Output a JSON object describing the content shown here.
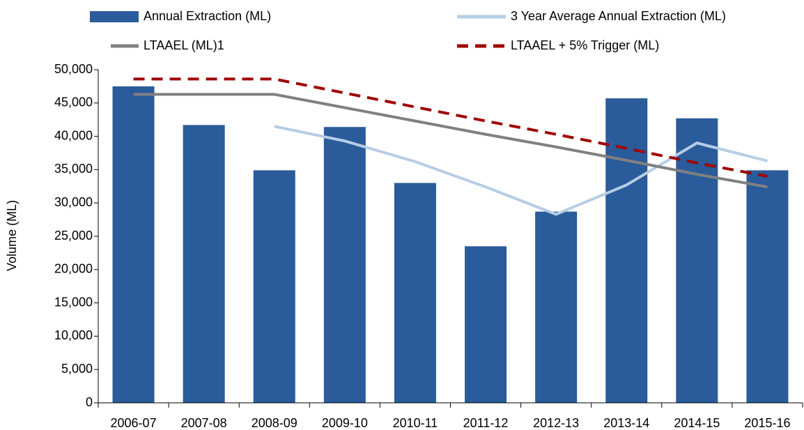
{
  "chart_data": {
    "type": "bar_line",
    "y_label": "Volume (ML)",
    "categories": [
      "2006-07",
      "2007-08",
      "2008-09",
      "2009-10",
      "2010-11",
      "2011-12",
      "2012-13",
      "2013-14",
      "2014-15",
      "2015-16"
    ],
    "series": [
      {
        "name": "Annual Extraction (ML)",
        "type": "bar",
        "color": "#2a5b9b",
        "values": [
          47500,
          41700,
          34900,
          41400,
          33000,
          23500,
          28700,
          45700,
          42700,
          34900
        ]
      },
      {
        "name": "3 Year Average Annual Extraction (ML)",
        "type": "line",
        "color": "#b7cde6",
        "values": [
          null,
          null,
          41500,
          39300,
          36200,
          32400,
          28300,
          32700,
          39000,
          36300
        ]
      },
      {
        "name": "LTAAEL (ML)1",
        "type": "line",
        "color": "#808080",
        "values": [
          46300,
          46300,
          46300,
          44300,
          42300,
          40300,
          38400,
          36400,
          34300,
          32400
        ]
      },
      {
        "name": "LTAAEL + 5% Trigger (ML)",
        "type": "line",
        "color": "#a00000",
        "dashed": true,
        "values": [
          48600,
          48600,
          48600,
          46500,
          44400,
          42300,
          40300,
          38200,
          36000,
          34000
        ]
      }
    ],
    "ylim": [
      0,
      50000
    ],
    "yticks": [
      0,
      {
        "value": 5000,
        "label": "5,000"
      },
      {
        "value": 10000,
        "label": "10,000"
      },
      {
        "value": 15000,
        "label": "15,000"
      },
      {
        "value": 20000,
        "label": "20,000"
      },
      {
        "value": 25000,
        "label": "25,000"
      },
      {
        "value": 30000,
        "label": "30,000"
      },
      {
        "value": 35000,
        "label": "35,000"
      },
      {
        "value": 40000,
        "label": "40,000"
      },
      {
        "value": 45000,
        "label": "45,000"
      },
      {
        "value": 50000,
        "label": "50,000"
      }
    ],
    "grid": false
  }
}
